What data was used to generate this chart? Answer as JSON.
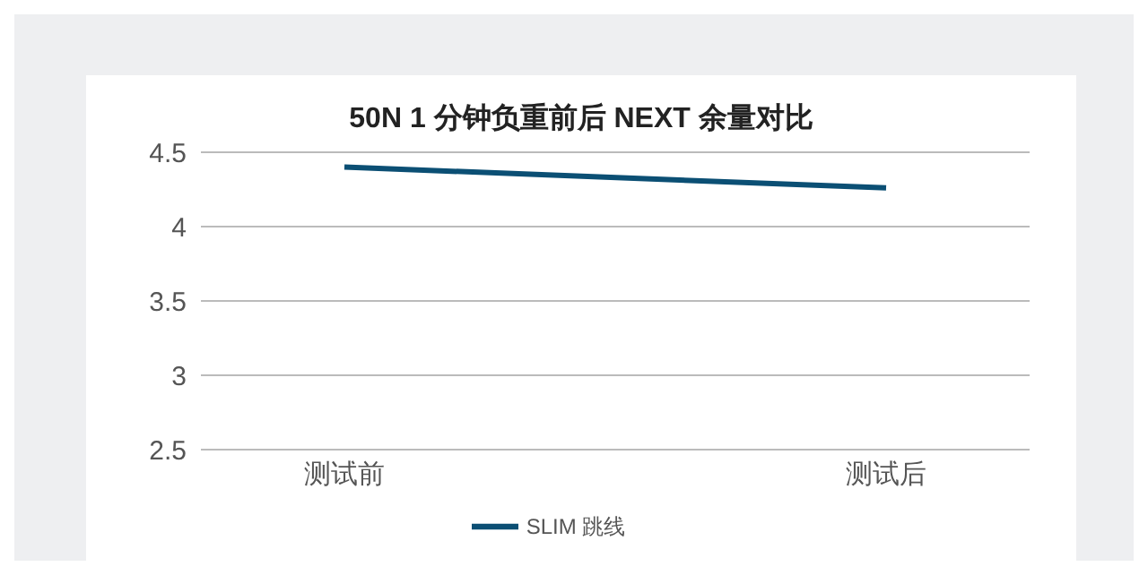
{
  "chart_data": {
    "type": "line",
    "title": "50N 1 分钟负重前后 NEXT 余量对比",
    "categories": [
      "测试前",
      "测试后"
    ],
    "series": [
      {
        "name": "SLIM 跳线",
        "color": "#0b4f74",
        "values": [
          4.4,
          4.26
        ]
      }
    ],
    "ylim": [
      2.5,
      4.5
    ],
    "yticks": [
      2.5,
      3,
      3.5,
      4,
      4.5
    ],
    "grid": "y",
    "legend": "bottom",
    "marker": "none",
    "line_style": "solid"
  }
}
